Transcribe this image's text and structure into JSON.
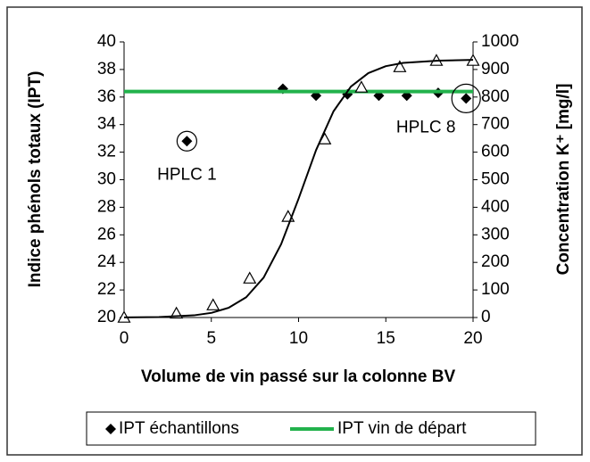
{
  "chart_data": {
    "type": "scatter",
    "xlabel": "Volume de vin passé sur la colonne BV",
    "ylabel": "Indice phénols totaux (IPT)",
    "y2label": "Concentration K⁺ [mg/l]",
    "xlim": [
      0,
      20
    ],
    "xticks": [
      0,
      5,
      10,
      15,
      20
    ],
    "ylim": [
      20,
      40
    ],
    "yticks": [
      20,
      22,
      24,
      26,
      28,
      30,
      32,
      34,
      36,
      38,
      40
    ],
    "y2lim": [
      0,
      1000
    ],
    "y2ticks": [
      0,
      100,
      200,
      300,
      400,
      500,
      600,
      700,
      800,
      900,
      1000
    ],
    "legend": "bottom",
    "series": [
      {
        "name": "IPT échantillons",
        "color": "#000000",
        "marker": "diamond",
        "x": [
          3.6,
          9.1,
          11.0,
          12.8,
          14.6,
          16.2,
          18.0,
          19.6
        ],
        "values": [
          32.8,
          36.6,
          36.1,
          36.2,
          36.1,
          36.1,
          36.3,
          35.9
        ]
      },
      {
        "name": "IPT vin de départ",
        "color": "#22b24c",
        "marker": "line",
        "x": [
          0,
          20
        ],
        "values": [
          36.4,
          36.4
        ]
      },
      {
        "color": "#000000",
        "marker": "triangle",
        "axis": "y2",
        "x": [
          0,
          3.0,
          5.1,
          7.2,
          9.4,
          11.5,
          13.6,
          15.8,
          17.9,
          20
        ],
        "values": [
          0,
          15,
          45,
          142,
          366,
          647,
          835,
          909,
          932,
          932
        ]
      },
      {
        "color": "#000000",
        "marker": "curve",
        "axis": "y2",
        "x": [
          0,
          2,
          4,
          5,
          6,
          7,
          8,
          9,
          10,
          11,
          12,
          13,
          14,
          15,
          16,
          18,
          20
        ],
        "values": [
          0.4,
          1.7,
          7.9,
          16.8,
          35.5,
          73.6,
          145,
          266,
          431,
          607,
          748,
          838,
          887,
          912,
          924,
          932,
          935
        ]
      }
    ],
    "annotations": [
      {
        "text": "HPLC 1",
        "x": 3.6,
        "y": 32.8
      },
      {
        "text": "HPLC 8",
        "x": 19.6,
        "y": 35.9
      }
    ]
  }
}
